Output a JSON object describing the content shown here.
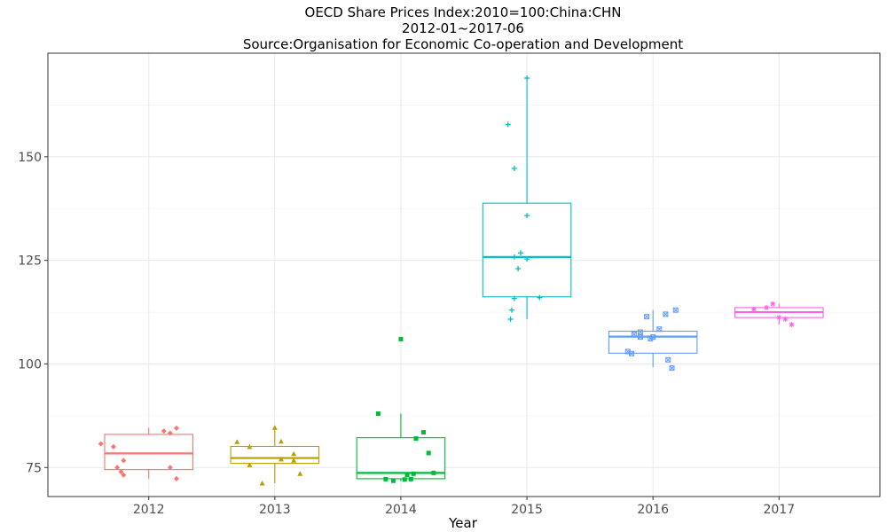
{
  "chart_data": {
    "type": "box",
    "title": "OECD Share Prices Index:2010=100:China:CHN",
    "subtitle": "2012-01~2017-06",
    "source": "Source:Organisation for Economic Co-operation and Development",
    "xlabel": "Year",
    "ylabel": "",
    "ylim": [
      68,
      175
    ],
    "yticks": [
      75,
      100,
      125,
      150
    ],
    "grid": true,
    "legend": "none",
    "categories": [
      "2012",
      "2013",
      "2014",
      "2015",
      "2016",
      "2017"
    ],
    "colors": [
      "#F8766D",
      "#B79F00",
      "#00BA38",
      "#00BFC4",
      "#619CFF",
      "#F564E3"
    ],
    "markers": [
      "diamond",
      "triangle",
      "square",
      "plus",
      "boxed-x",
      "asterisk"
    ],
    "boxes": [
      {
        "q1": 74.5,
        "median": 78.4,
        "q3": 83.0,
        "whisker_low": 72.3,
        "whisker_high": 84.6
      },
      {
        "q1": 76.0,
        "median": 77.3,
        "q3": 80.1,
        "whisker_low": 71.2,
        "whisker_high": 84.6
      },
      {
        "q1": 72.3,
        "median": 73.7,
        "q3": 82.2,
        "whisker_low": 71.7,
        "whisker_high": 88.0
      },
      {
        "q1": 116.2,
        "median": 125.8,
        "q3": 138.8,
        "whisker_low": 110.8,
        "whisker_high": 169.0
      },
      {
        "q1": 102.6,
        "median": 106.6,
        "q3": 107.9,
        "whisker_low": 99.2,
        "whisker_high": 113.0
      },
      {
        "q1": 111.2,
        "median": 112.5,
        "q3": 113.6,
        "whisker_low": 109.5,
        "whisker_high": 114.5
      }
    ],
    "points": [
      [
        [
          -0.38,
          80.7
        ],
        [
          -0.28,
          80.0
        ],
        [
          -0.2,
          76.7
        ],
        [
          -0.25,
          75.0
        ],
        [
          -0.22,
          74.0
        ],
        [
          -0.2,
          73.2
        ],
        [
          0.12,
          83.8
        ],
        [
          0.17,
          83.3
        ],
        [
          0.22,
          84.5
        ],
        [
          0.17,
          75.0
        ],
        [
          0.22,
          72.3
        ]
      ],
      [
        [
          -0.3,
          81.2
        ],
        [
          -0.2,
          80.0
        ],
        [
          -0.1,
          71.2
        ],
        [
          0.0,
          84.6
        ],
        [
          0.05,
          81.3
        ],
        [
          0.15,
          78.3
        ],
        [
          0.05,
          77.0
        ],
        [
          0.15,
          76.7
        ],
        [
          0.2,
          73.5
        ],
        [
          -0.2,
          75.6
        ]
      ],
      [
        [
          -0.18,
          88.0
        ],
        [
          -0.12,
          72.2
        ],
        [
          -0.06,
          71.8
        ],
        [
          0.0,
          106.0
        ],
        [
          0.03,
          72.1
        ],
        [
          0.05,
          73.2
        ],
        [
          0.08,
          72.2
        ],
        [
          0.1,
          73.5
        ],
        [
          0.12,
          82.0
        ],
        [
          0.18,
          83.5
        ],
        [
          0.22,
          78.5
        ],
        [
          0.26,
          73.7
        ]
      ],
      [
        [
          -0.15,
          157.8
        ],
        [
          -0.1,
          147.2
        ],
        [
          0.0,
          169.0
        ],
        [
          0.0,
          135.8
        ],
        [
          -0.05,
          126.8
        ],
        [
          -0.1,
          125.8
        ],
        [
          -0.07,
          123.0
        ],
        [
          -0.1,
          115.8
        ],
        [
          -0.12,
          113.0
        ],
        [
          -0.13,
          110.8
        ],
        [
          0.0,
          125.3
        ],
        [
          0.1,
          116.0
        ]
      ],
      [
        [
          -0.2,
          103.0
        ],
        [
          -0.17,
          102.5
        ],
        [
          -0.15,
          107.2
        ],
        [
          -0.1,
          107.7
        ],
        [
          -0.1,
          106.5
        ],
        [
          -0.05,
          111.4
        ],
        [
          -0.02,
          106.1
        ],
        [
          0.0,
          106.5
        ],
        [
          0.05,
          108.4
        ],
        [
          0.1,
          112.0
        ],
        [
          0.12,
          101.0
        ],
        [
          0.15,
          99.0
        ],
        [
          0.18,
          113.0
        ]
      ],
      [
        [
          -0.2,
          113.2
        ],
        [
          -0.1,
          113.6
        ],
        [
          -0.05,
          114.5
        ],
        [
          0.0,
          111.2
        ],
        [
          0.05,
          110.8
        ],
        [
          0.1,
          109.5
        ]
      ]
    ]
  }
}
